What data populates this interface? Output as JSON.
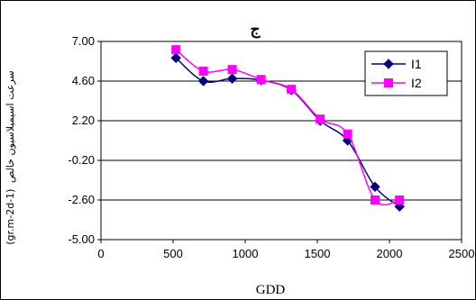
{
  "chart_data": {
    "type": "line",
    "title": "ج",
    "xlabel": "GDD",
    "ylabel": "سرعت اسیمیلاسیون خالص",
    "ylabel_unit": "(gr.m-2d-1)",
    "xlim": [
      0,
      2500
    ],
    "ylim": [
      -5.0,
      7.0
    ],
    "xticks": [
      0,
      500,
      1000,
      1500,
      2000,
      2500
    ],
    "yticks": [
      7.0,
      4.6,
      2.2,
      -0.2,
      -2.6,
      -5.0
    ],
    "ytick_labels": [
      "7.00",
      "4.60",
      "2.20",
      "-0.20",
      "-2.60",
      "-5.00"
    ],
    "grid": "horizontal",
    "legend_position": "top-right",
    "series": [
      {
        "name": "I1",
        "color": "#000080",
        "marker": "diamond",
        "x": [
          520,
          710,
          910,
          1110,
          1320,
          1520,
          1710,
          1900,
          2070
        ],
        "y": [
          6.0,
          4.6,
          4.75,
          4.65,
          4.05,
          2.2,
          1.0,
          -1.8,
          -3.0
        ]
      },
      {
        "name": "I2",
        "color": "#ff00ff",
        "marker": "square",
        "x": [
          520,
          710,
          910,
          1110,
          1320,
          1520,
          1710,
          1900,
          2070
        ],
        "y": [
          6.5,
          5.2,
          5.3,
          4.7,
          4.1,
          2.3,
          1.4,
          -2.6,
          -2.6
        ]
      }
    ]
  }
}
